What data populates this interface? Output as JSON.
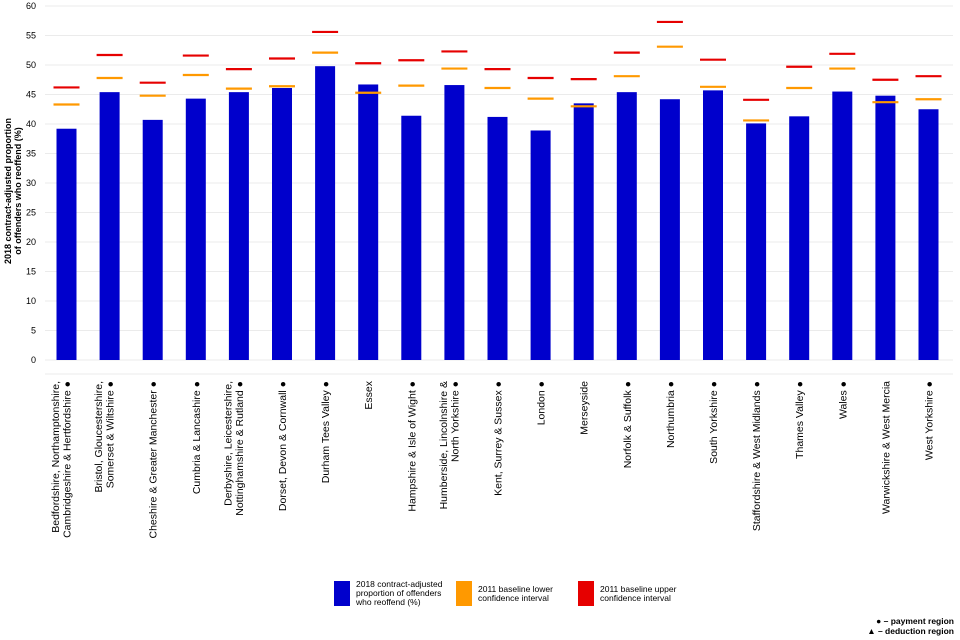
{
  "chart_data": {
    "type": "bar",
    "ylabel_line1": "2018 contract-adjusted proportion",
    "ylabel_line2": "of offenders who reoffend (%)",
    "ylim": [
      0,
      60
    ],
    "yticks": [
      0,
      5,
      10,
      15,
      20,
      25,
      30,
      35,
      40,
      45,
      50,
      55,
      60
    ],
    "categories": [
      {
        "label": [
          "Bedfordshire, Northamptonshire,",
          "Cambridgeshire & Hertfordshire"
        ],
        "marker": "●"
      },
      {
        "label": [
          "Bristol, Gloucestershire,",
          "Somerset & Wiltshire"
        ],
        "marker": "●"
      },
      {
        "label": [
          "Cheshire & Greater Manchester"
        ],
        "marker": "●"
      },
      {
        "label": [
          "Cumbria & Lancashire"
        ],
        "marker": "●"
      },
      {
        "label": [
          "Derbyshire, Leicestershire,",
          "Nottinghamshire & Rutland"
        ],
        "marker": "●"
      },
      {
        "label": [
          "Dorset, Devon & Cornwall"
        ],
        "marker": "●"
      },
      {
        "label": [
          "Durham Tees Valley"
        ],
        "marker": "●"
      },
      {
        "label": [
          "Essex"
        ],
        "marker": ""
      },
      {
        "label": [
          "Hampshire & Isle of Wight"
        ],
        "marker": "●"
      },
      {
        "label": [
          "Humberside, Lincolnshire &",
          "North Yorkshire"
        ],
        "marker": "●"
      },
      {
        "label": [
          "Kent, Surrey & Sussex"
        ],
        "marker": "●"
      },
      {
        "label": [
          "London"
        ],
        "marker": "●"
      },
      {
        "label": [
          "Merseyside"
        ],
        "marker": ""
      },
      {
        "label": [
          "Norfolk & Suffolk"
        ],
        "marker": "●"
      },
      {
        "label": [
          "Northumbria"
        ],
        "marker": "●"
      },
      {
        "label": [
          "South Yorkshire"
        ],
        "marker": "●"
      },
      {
        "label": [
          "Staffordshire & West Midlands"
        ],
        "marker": "●"
      },
      {
        "label": [
          "Thames Valley"
        ],
        "marker": "●"
      },
      {
        "label": [
          "Wales"
        ],
        "marker": "●"
      },
      {
        "label": [
          "Warwickshire & West Mercia"
        ],
        "marker": ""
      },
      {
        "label": [
          "West Yorkshire"
        ],
        "marker": "●"
      }
    ],
    "series": [
      {
        "name": "2018 contract-adjusted proportion of offenders who reoffend (%)",
        "kind": "bar",
        "values": [
          39.2,
          45.4,
          40.7,
          44.3,
          45.4,
          46.1,
          49.8,
          46.7,
          41.4,
          46.6,
          41.2,
          38.9,
          43.5,
          45.4,
          44.2,
          45.7,
          40.1,
          41.3,
          45.5,
          44.8,
          42.5
        ]
      },
      {
        "name": "2011 baseline lower confidence interval",
        "kind": "marker",
        "values": [
          43.3,
          47.8,
          44.8,
          48.3,
          46.0,
          46.4,
          52.1,
          45.3,
          46.5,
          49.4,
          46.1,
          44.3,
          43.0,
          48.1,
          53.1,
          46.3,
          40.6,
          46.1,
          49.4,
          43.7,
          44.2
        ]
      },
      {
        "name": "2011 baseline upper confidence interval",
        "kind": "marker",
        "values": [
          46.2,
          51.7,
          47.0,
          51.6,
          49.3,
          51.1,
          55.6,
          50.3,
          50.8,
          52.3,
          49.3,
          47.8,
          47.6,
          52.1,
          57.3,
          50.9,
          44.1,
          49.7,
          51.9,
          47.5,
          48.1
        ]
      }
    ],
    "colors": {
      "bar": "#0000cc",
      "lower": "#ff9900",
      "upper": "#e60000",
      "grid": "#ebebeb"
    },
    "legend": [
      {
        "key": "bar",
        "lines": [
          "2018 contract-adjusted",
          "proportion of offenders",
          "who reoffend (%)"
        ]
      },
      {
        "key": "lower",
        "lines": [
          "2011 baseline lower",
          "confidence interval"
        ]
      },
      {
        "key": "upper",
        "lines": [
          "2011 baseline upper",
          "confidence interval"
        ]
      }
    ]
  },
  "notes": {
    "payment": "● – payment region",
    "deduction": "▲ – deduction region"
  }
}
